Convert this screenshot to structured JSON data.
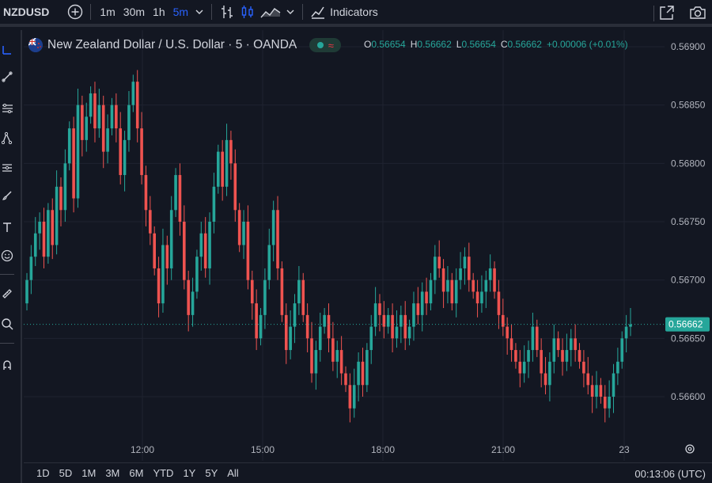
{
  "toolbar": {
    "symbol": "NZDUSD",
    "intervals": [
      "1m",
      "30m",
      "1h",
      "5m"
    ],
    "active_interval": "5m",
    "indicators_label": "Indicators"
  },
  "legend": {
    "title": "New Zealand Dollar / U.S. Dollar · 5 · OANDA",
    "o_label": "O",
    "o_value": "0.56654",
    "h_label": "H",
    "h_value": "0.56662",
    "l_label": "L",
    "l_value": "0.56654",
    "c_label": "C",
    "c_value": "0.56662",
    "change": "+0.00006 (+0.01%)"
  },
  "price_axis": {
    "labels": [
      "0.56900",
      "0.56850",
      "0.56800",
      "0.56750",
      "0.56700",
      "0.56650",
      "0.56600"
    ],
    "current_price": "0.56662"
  },
  "time_axis": {
    "labels": [
      "12:00",
      "15:00",
      "18:00",
      "21:00",
      "23"
    ]
  },
  "bottom": {
    "ranges": [
      "1D",
      "5D",
      "1M",
      "3M",
      "6M",
      "YTD",
      "1Y",
      "5Y",
      "All"
    ],
    "clock": "00:13:06 (UTC)"
  },
  "colors": {
    "up": "#26a69a",
    "down": "#ef5350",
    "background": "#131722",
    "accent": "#2962ff"
  },
  "chart_data": {
    "type": "candlestick",
    "ylim": [
      0.5657,
      0.569
    ],
    "xlabels": [
      "12:00",
      "15:00",
      "18:00",
      "21:00",
      "23"
    ],
    "last_price": 0.56662,
    "closes": [
      0.567,
      0.5672,
      0.5674,
      0.5675,
      0.5672,
      0.5676,
      0.5673,
      0.5678,
      0.5676,
      0.568,
      0.5683,
      0.5677,
      0.5685,
      0.5682,
      0.5684,
      0.5686,
      0.5683,
      0.5685,
      0.5681,
      0.5683,
      0.5685,
      0.5683,
      0.5679,
      0.5682,
      0.5685,
      0.5687,
      0.5683,
      0.5679,
      0.5676,
      0.5674,
      0.5671,
      0.5668,
      0.5673,
      0.5671,
      0.5676,
      0.5679,
      0.5675,
      0.567,
      0.5667,
      0.5669,
      0.5672,
      0.5674,
      0.5671,
      0.5675,
      0.5678,
      0.5681,
      0.5678,
      0.5682,
      0.568,
      0.5676,
      0.5673,
      0.5675,
      0.567,
      0.5668,
      0.5665,
      0.5667,
      0.567,
      0.5673,
      0.5676,
      0.5671,
      0.5667,
      0.5664,
      0.5666,
      0.5668,
      0.567,
      0.5667,
      0.5665,
      0.5662,
      0.5664,
      0.5666,
      0.5667,
      0.5665,
      0.5663,
      0.5664,
      0.5662,
      0.5661,
      0.5659,
      0.5661,
      0.5663,
      0.5661,
      0.5664,
      0.5666,
      0.5668,
      0.5667,
      0.5666,
      0.5667,
      0.5665,
      0.5666,
      0.5667,
      0.5665,
      0.5666,
      0.5668,
      0.5667,
      0.5669,
      0.5668,
      0.567,
      0.5672,
      0.5671,
      0.5669,
      0.567,
      0.5668,
      0.567,
      0.5671,
      0.5672,
      0.567,
      0.5669,
      0.5668,
      0.5669,
      0.567,
      0.5671,
      0.5669,
      0.5667,
      0.5666,
      0.5665,
      0.5664,
      0.5663,
      0.5662,
      0.5663,
      0.5664,
      0.5666,
      0.5664,
      0.5662,
      0.5661,
      0.5663,
      0.5665,
      0.5664,
      0.5663,
      0.5664,
      0.5665,
      0.5664,
      0.5663,
      0.5662,
      0.5661,
      0.566,
      0.5661,
      0.566,
      0.5659,
      0.566,
      0.5662,
      0.5663,
      0.5665,
      0.5666,
      0.56662
    ]
  }
}
